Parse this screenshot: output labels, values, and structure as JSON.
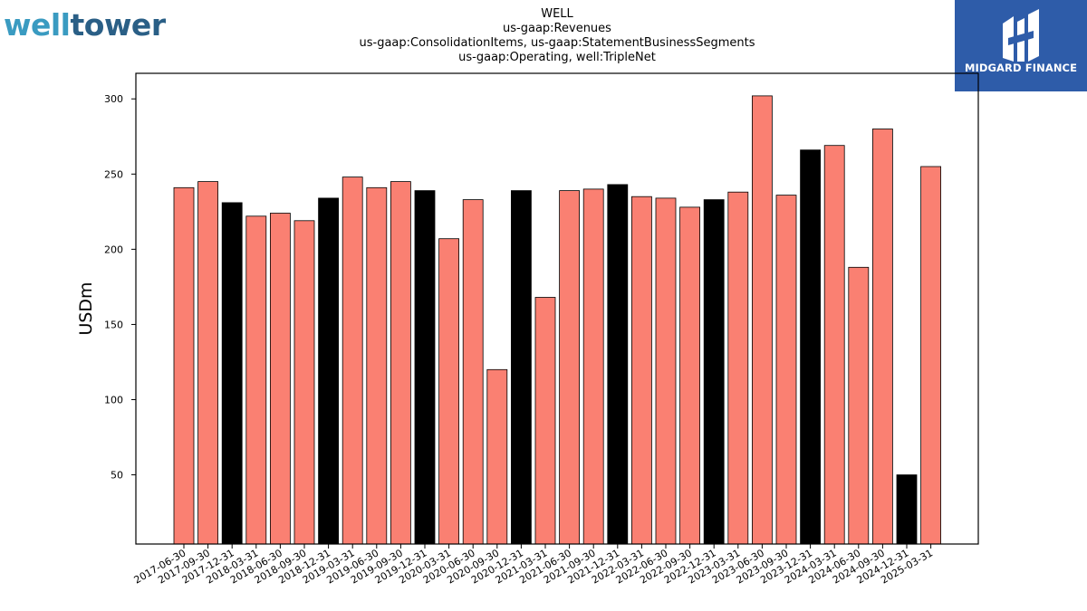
{
  "logos": {
    "left_part1": "well",
    "left_part2": "tower",
    "right_text": "MIDGARD FINANCE"
  },
  "chart_data": {
    "type": "bar",
    "title_lines": [
      "WELL",
      "us-gaap:Revenues",
      "us-gaap:ConsolidationItems, us-gaap:StatementBusinessSegments",
      "us-gaap:Operating, well:TripleNet"
    ],
    "xlabel": "",
    "ylabel": "USDm",
    "ylim": [
      4,
      317
    ],
    "yticks": [
      50,
      100,
      150,
      200,
      250,
      300
    ],
    "grid": false,
    "colors": {
      "regular": "#fa8072",
      "year_end": "#000000"
    },
    "categories": [
      "2017-06-30",
      "2017-09-30",
      "2017-12-31",
      "2018-03-31",
      "2018-06-30",
      "2018-09-30",
      "2018-12-31",
      "2019-03-31",
      "2019-06-30",
      "2019-09-30",
      "2019-12-31",
      "2020-03-31",
      "2020-06-30",
      "2020-09-30",
      "2020-12-31",
      "2021-03-31",
      "2021-06-30",
      "2021-09-30",
      "2021-12-31",
      "2022-03-31",
      "2022-06-30",
      "2022-09-30",
      "2022-12-31",
      "2023-03-31",
      "2023-06-30",
      "2023-09-30",
      "2023-12-31",
      "2024-03-31",
      "2024-06-30",
      "2024-09-30",
      "2024-12-31",
      "2025-03-31"
    ],
    "values": [
      241,
      245,
      231,
      222,
      224,
      219,
      234,
      248,
      241,
      245,
      239,
      207,
      233,
      120,
      239,
      168,
      239,
      240,
      243,
      235,
      234,
      228,
      233,
      238,
      302,
      236,
      266,
      269,
      188,
      280,
      50,
      255
    ],
    "year_end": [
      false,
      false,
      true,
      false,
      false,
      false,
      true,
      false,
      false,
      false,
      true,
      false,
      false,
      false,
      true,
      false,
      false,
      false,
      true,
      false,
      false,
      false,
      true,
      false,
      false,
      false,
      true,
      false,
      false,
      false,
      true,
      false
    ]
  }
}
